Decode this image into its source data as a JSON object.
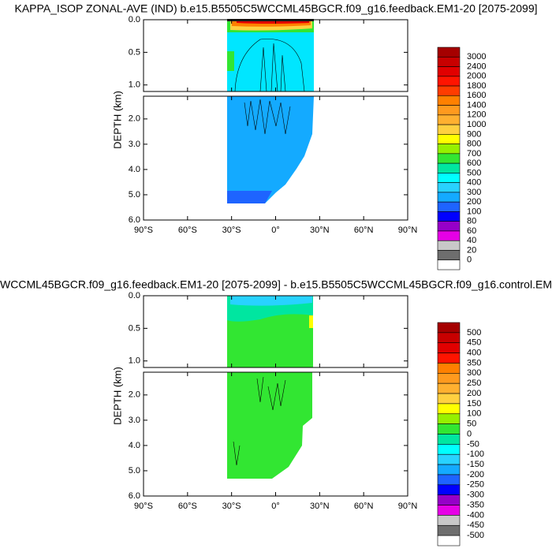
{
  "chart_data": [
    {
      "type": "contour",
      "title": "KAPPA_ISOP ZONAL-AVE (IND) b.e15.B5505C5WCCML45BGCR.f09_g16.feedback.EM1-20 [2075-2099]",
      "ylabel": "DEPTH (km)",
      "xlim": [
        -90,
        90
      ],
      "xticks": [
        {
          "value": -90,
          "label": "90°S"
        },
        {
          "value": -60,
          "label": "60°S"
        },
        {
          "value": -30,
          "label": "30°S"
        },
        {
          "value": 0,
          "label": "0°"
        },
        {
          "value": 30,
          "label": "30°N"
        },
        {
          "value": 60,
          "label": "60°N"
        },
        {
          "value": 90,
          "label": "90°N"
        }
      ],
      "panels": [
        {
          "ylim": [
            0,
            1.1
          ],
          "yticks": [
            {
              "value": 0,
              "label": "0.0"
            },
            {
              "value": 0.5,
              "label": "0.5"
            },
            {
              "value": 1,
              "label": "1.0"
            }
          ]
        },
        {
          "ylim": [
            1.1,
            6
          ],
          "yticks": [
            {
              "value": 2,
              "label": "2.0"
            },
            {
              "value": 3,
              "label": "3.0"
            },
            {
              "value": 4,
              "label": "4.0"
            },
            {
              "value": 5,
              "label": "5.0"
            },
            {
              "value": 6,
              "label": "6.0"
            }
          ]
        }
      ],
      "levels": [
        3000,
        2400,
        2000,
        1800,
        1600,
        1400,
        1200,
        1000,
        900,
        800,
        700,
        600,
        500,
        400,
        300,
        200,
        100,
        80,
        60,
        40,
        20,
        0
      ],
      "colors": [
        "#a50000",
        "#c80000",
        "#e10000",
        "#ff1400",
        "#ff3c00",
        "#ff8000",
        "#ff9a1e",
        "#ffb030",
        "#ffd040",
        "#ffff00",
        "#96f000",
        "#32e632",
        "#00e6a0",
        "#00ffff",
        "#28d2ff",
        "#14aaff",
        "#1e64ff",
        "#0000ff",
        "#9600c8",
        "#e600e6",
        "#c8c8c8",
        "#6e6e6e",
        "#ffffff"
      ]
    },
    {
      "type": "contour",
      "title": "WCCML45BGCR.f09_g16.feedback.EM1-20 [2075-2099] - b.e15.B5505C5WCCML45BGCR.f09_g16.control.EM",
      "ylabel": "DEPTH (km)",
      "xlim": [
        -90,
        90
      ],
      "xticks": [
        {
          "value": -90,
          "label": "90°S"
        },
        {
          "value": -60,
          "label": "60°S"
        },
        {
          "value": -30,
          "label": "30°S"
        },
        {
          "value": 0,
          "label": "0°"
        },
        {
          "value": 30,
          "label": "30°N"
        },
        {
          "value": 60,
          "label": "60°N"
        },
        {
          "value": 90,
          "label": "90°N"
        }
      ],
      "panels": [
        {
          "ylim": [
            0,
            1.1
          ],
          "yticks": [
            {
              "value": 0,
              "label": "0.0"
            },
            {
              "value": 0.5,
              "label": "0.5"
            },
            {
              "value": 1,
              "label": "1.0"
            }
          ]
        },
        {
          "ylim": [
            1.1,
            6
          ],
          "yticks": [
            {
              "value": 2,
              "label": "2.0"
            },
            {
              "value": 3,
              "label": "3.0"
            },
            {
              "value": 4,
              "label": "4.0"
            },
            {
              "value": 5,
              "label": "5.0"
            },
            {
              "value": 6,
              "label": "6.0"
            }
          ]
        }
      ],
      "levels": [
        500,
        450,
        400,
        350,
        300,
        250,
        200,
        150,
        100,
        50,
        0,
        -50,
        -100,
        -150,
        -200,
        -250,
        -300,
        -350,
        -400,
        -450,
        -500
      ],
      "colors": [
        "#a50000",
        "#c80000",
        "#e10000",
        "#ff1400",
        "#ff8000",
        "#ff9a1e",
        "#ffb030",
        "#ffd040",
        "#ffff00",
        "#96f000",
        "#32e632",
        "#00e6a0",
        "#00ffff",
        "#28d2ff",
        "#14aaff",
        "#1e64ff",
        "#0000ff",
        "#9600c8",
        "#e600e6",
        "#c8c8c8",
        "#6e6e6e",
        "#ffffff"
      ]
    }
  ]
}
